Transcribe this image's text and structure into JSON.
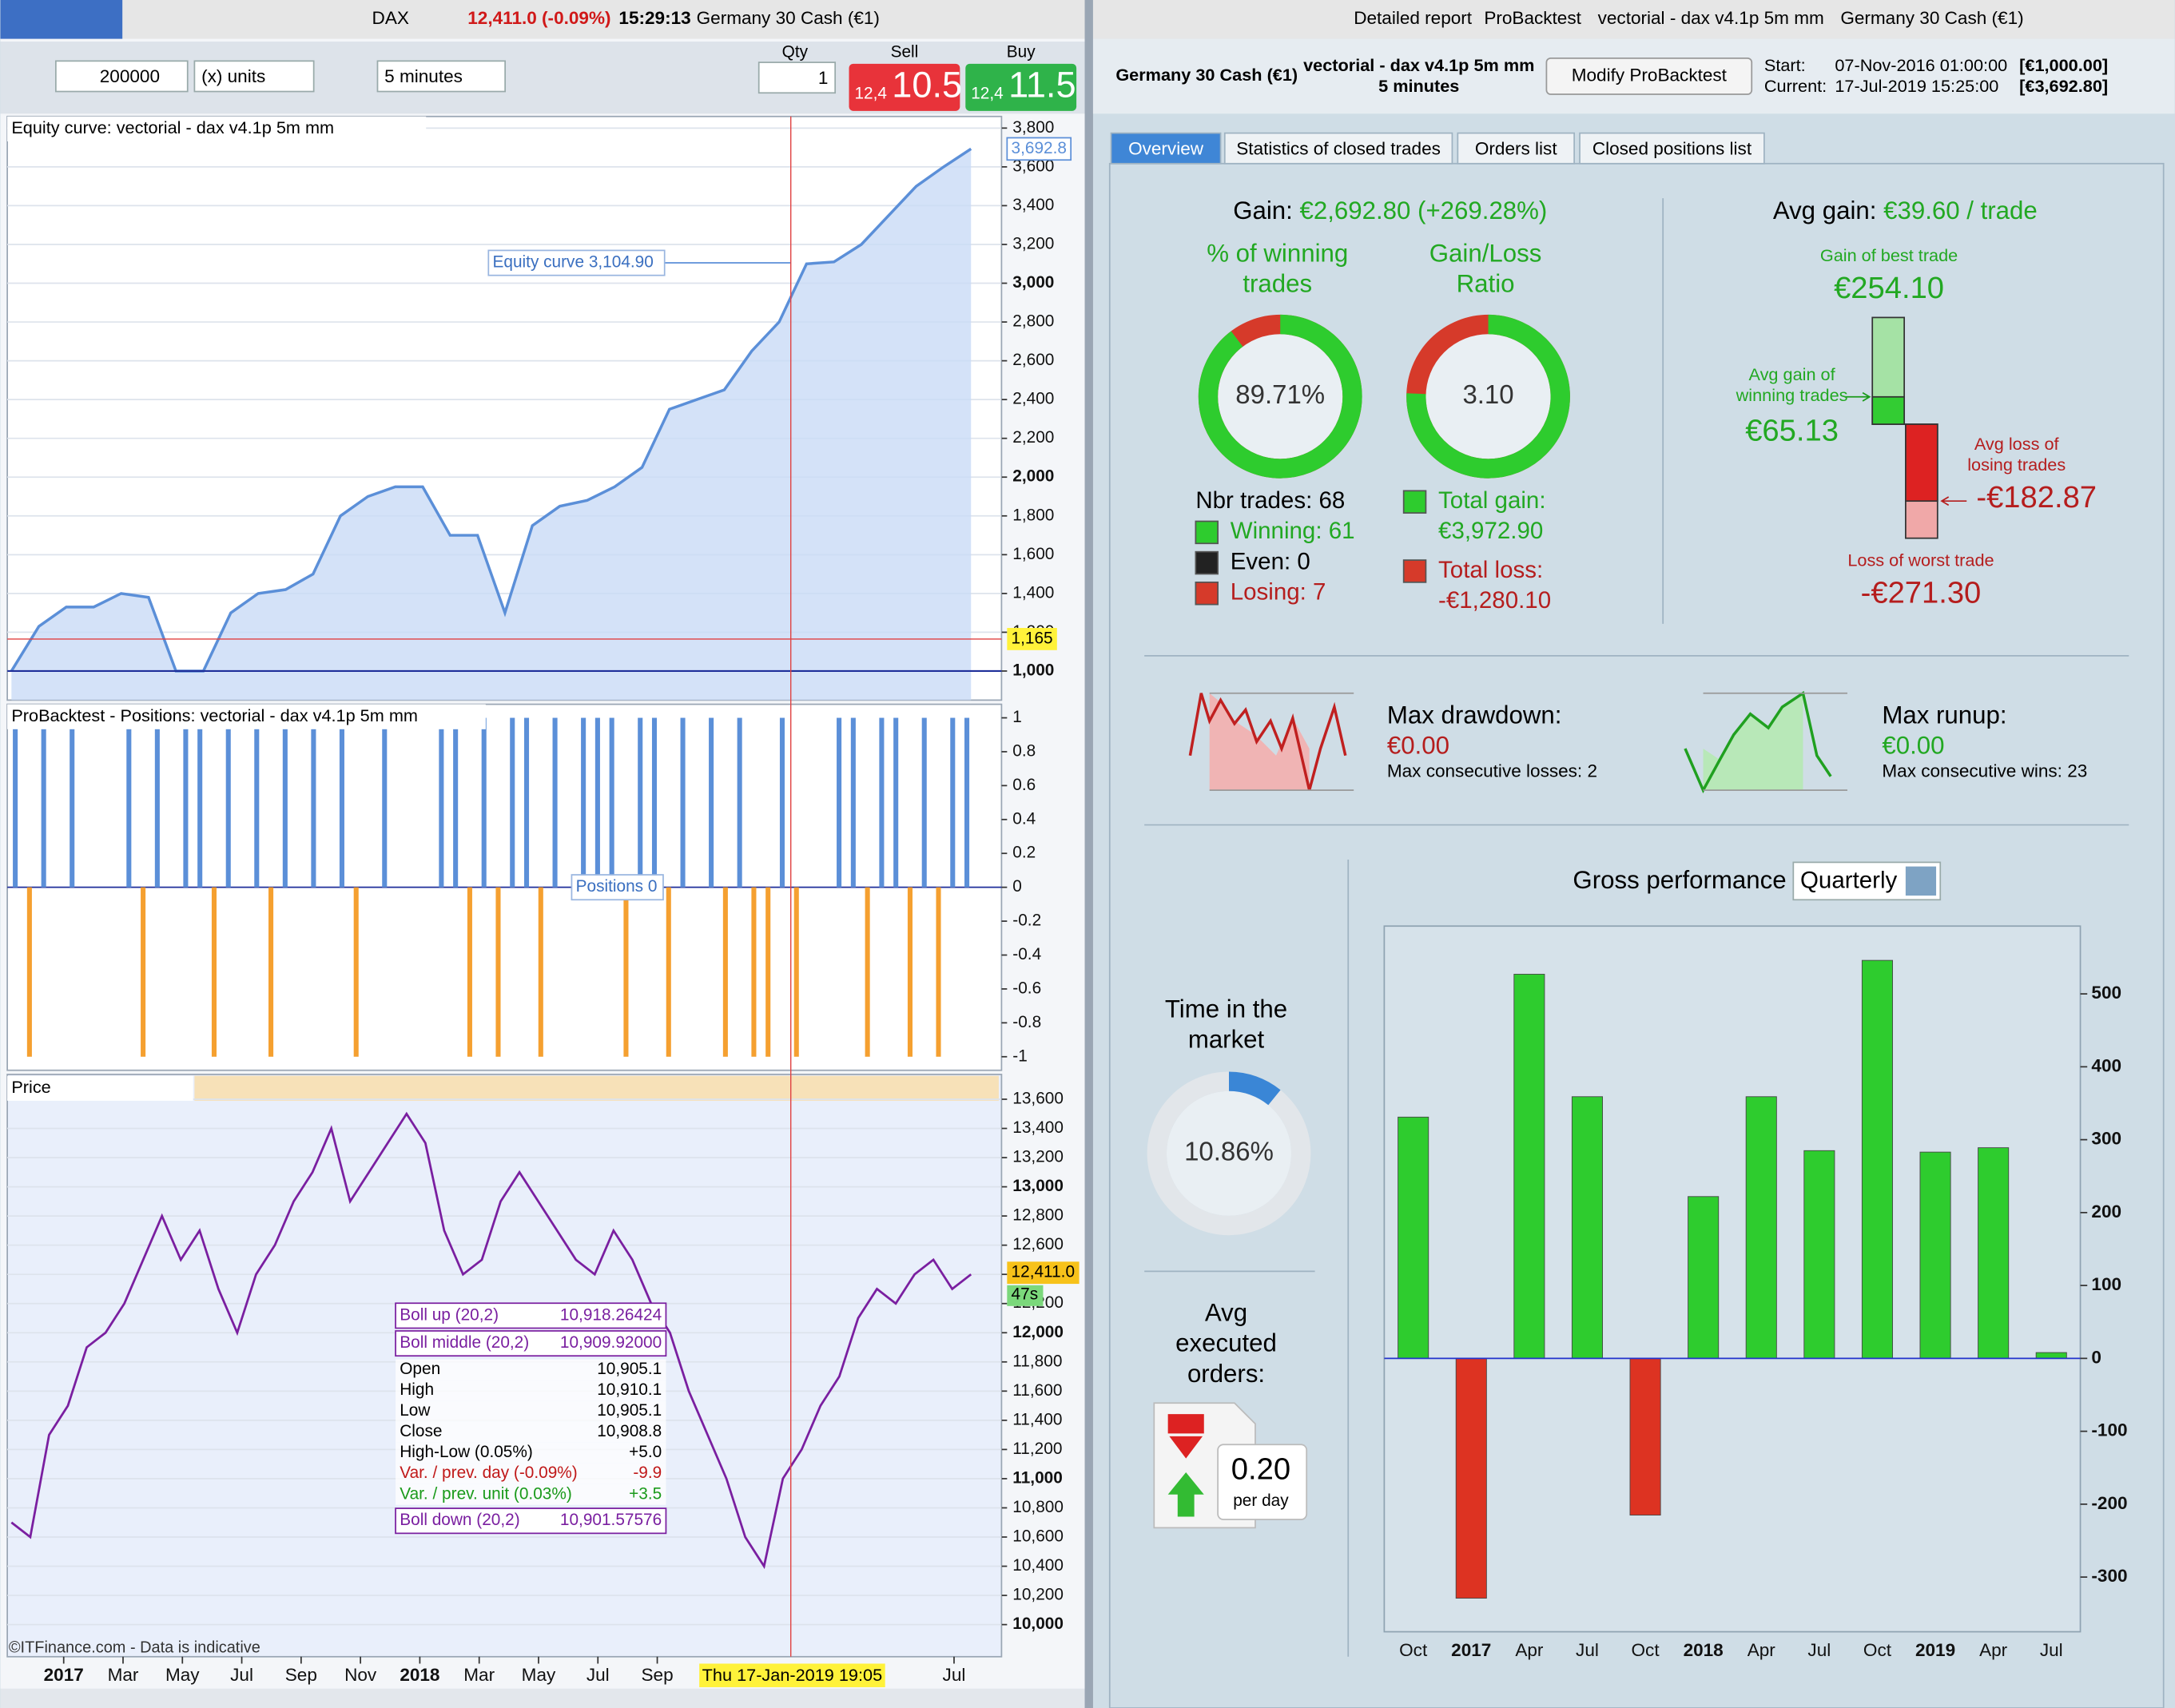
{
  "left_window": {
    "symbol": "DAX",
    "quote": "12,411.0 (-0.09%)",
    "time": "15:29:13",
    "instrument": "Germany 30 Cash (€1)"
  },
  "toolbar": {
    "amount": "200000",
    "units": "(x) units",
    "timeframe": "5 minutes",
    "qty_label": "Qty",
    "qty": "1",
    "sell_label": "Sell",
    "buy_label": "Buy",
    "sell_prefix": "12,4",
    "sell_price": "10.5",
    "buy_prefix": "12,4",
    "buy_price": "11.5"
  },
  "chart_data": [
    {
      "type": "area",
      "title": "Equity curve: vectorial - dax v4.1p 5m mm",
      "values": [
        1000,
        1230,
        1330,
        1330,
        1400,
        1380,
        1000,
        1000,
        1300,
        1400,
        1420,
        1500,
        1800,
        1900,
        1950,
        1950,
        1700,
        1700,
        1300,
        1750,
        1850,
        1880,
        1950,
        2050,
        2350,
        2400,
        2450,
        2650,
        2800,
        3100,
        3110,
        3200,
        3350,
        3500,
        3600,
        3692.8
      ],
      "color": "#5b8fd8",
      "fill": "#c9dbf6",
      "annotation": {
        "value": 3104.9,
        "label": "Equity curve  3,104.90"
      },
      "last_value": {
        "value": 3692.8,
        "label": "3,692.8"
      },
      "marker": {
        "value": 1165,
        "label": "1,165"
      },
      "ylim": [
        850,
        3860
      ],
      "yticks": [
        {
          "value": 1000,
          "label": "1,000"
        },
        {
          "value": 1200,
          "label": "1,200"
        },
        {
          "value": 1400,
          "label": "1,400"
        },
        {
          "value": 1600,
          "label": "1,600"
        },
        {
          "value": 1800,
          "label": "1,800"
        },
        {
          "value": 2000,
          "label": "2,000"
        },
        {
          "value": 2200,
          "label": "2,200"
        },
        {
          "value": 2400,
          "label": "2,400"
        },
        {
          "value": 2600,
          "label": "2,600"
        },
        {
          "value": 2800,
          "label": "2,800"
        },
        {
          "value": 3000,
          "label": "3,000"
        },
        {
          "value": 3200,
          "label": "3,200"
        },
        {
          "value": 3400,
          "label": "3,400"
        },
        {
          "value": 3600,
          "label": "3,600"
        },
        {
          "value": 3800,
          "label": "3,800"
        }
      ],
      "grid": true
    },
    {
      "type": "bar",
      "title": "ProBacktest - Positions: vectorial - dax v4.1p 5m mm",
      "annotation": "Positions  0",
      "values": [
        1,
        -1,
        1,
        0,
        1,
        0,
        0,
        0,
        1,
        -1,
        1,
        0,
        1,
        1,
        -1,
        1,
        0,
        1,
        -1,
        1,
        0,
        1,
        0,
        1,
        -1,
        0,
        1,
        0,
        0,
        0,
        1,
        1,
        -1,
        1,
        -1,
        1,
        1,
        -1,
        1,
        0,
        1,
        1,
        1,
        -1,
        1,
        1,
        -1,
        1,
        0,
        1,
        -1,
        1,
        -1,
        -1,
        1,
        -1,
        0,
        0,
        1,
        1,
        -1,
        1,
        1,
        -1,
        1,
        -1,
        1,
        1,
        0,
        0
      ],
      "positive_color": "#5b8fd8",
      "negative_color": "#f5a030",
      "ylim": [
        -1.08,
        1.08
      ],
      "yticks": [
        1,
        0.8,
        0.6,
        0.4,
        0.2,
        0,
        -0.2,
        -0.4,
        -0.6,
        -0.8,
        -1
      ]
    },
    {
      "type": "line",
      "title": "Price",
      "values": [
        10700,
        10600,
        11300,
        11500,
        11900,
        12000,
        12200,
        12500,
        12800,
        12500,
        12700,
        12300,
        12000,
        12400,
        12600,
        12900,
        13100,
        13400,
        12900,
        13100,
        13300,
        13500,
        13300,
        12700,
        12400,
        12500,
        12900,
        13100,
        12900,
        12700,
        12500,
        12400,
        12700,
        12500,
        12200,
        12000,
        11600,
        11300,
        11000,
        10600,
        10400,
        11000,
        11200,
        11500,
        11700,
        12100,
        12300,
        12200,
        12400,
        12500,
        12300,
        12400
      ],
      "color": "#7a1fa0",
      "last_value": {
        "value": 12411,
        "label": "12,411.0"
      },
      "countdown": "47s",
      "cursor": {
        "value": 24.5,
        "label": "Thu 17-Jan-2019 19:05"
      },
      "xlim": [
        -1.9,
        31.6
      ],
      "xticks": [
        {
          "value": 0,
          "label": "2017"
        },
        {
          "value": 2,
          "label": "Mar"
        },
        {
          "value": 4,
          "label": "May"
        },
        {
          "value": 6,
          "label": "Jul"
        },
        {
          "value": 8,
          "label": "Sep"
        },
        {
          "value": 10,
          "label": "Nov"
        },
        {
          "value": 12,
          "label": "2018"
        },
        {
          "value": 14,
          "label": "Mar"
        },
        {
          "value": 16,
          "label": "May"
        },
        {
          "value": 18,
          "label": "Jul"
        },
        {
          "value": 20,
          "label": "Sep"
        },
        {
          "value": 30,
          "label": "Jul"
        }
      ],
      "ylim": [
        9780,
        13770
      ],
      "yticks": [
        {
          "value": 10000,
          "label": "10,000"
        },
        {
          "value": 10200,
          "label": "10,200"
        },
        {
          "value": 10400,
          "label": "10,400"
        },
        {
          "value": 10600,
          "label": "10,600"
        },
        {
          "value": 10800,
          "label": "10,800"
        },
        {
          "value": 11000,
          "label": "11,000"
        },
        {
          "value": 11200,
          "label": "11,200"
        },
        {
          "value": 11400,
          "label": "11,400"
        },
        {
          "value": 11600,
          "label": "11,600"
        },
        {
          "value": 11800,
          "label": "11,800"
        },
        {
          "value": 12000,
          "label": "12,000"
        },
        {
          "value": 12200,
          "label": "12,200"
        },
        {
          "value": 12400,
          "label": "12,400"
        },
        {
          "value": 12600,
          "label": "12,600"
        },
        {
          "value": 12800,
          "label": "12,800"
        },
        {
          "value": 13000,
          "label": "13,000"
        },
        {
          "value": 13200,
          "label": "13,200"
        },
        {
          "value": 13400,
          "label": "13,400"
        },
        {
          "value": 13600,
          "label": "13,600"
        }
      ],
      "grid": true
    },
    {
      "type": "bar",
      "title": "Gross performance",
      "period": "Quarterly",
      "categories": [
        "Oct",
        "2017",
        "Apr",
        "Jul",
        "Oct",
        "2018",
        "Apr",
        "Jul",
        "Oct",
        "2019",
        "Apr",
        "Jul"
      ],
      "values": [
        331,
        -329,
        527,
        359,
        -215,
        222,
        359,
        285,
        546,
        283,
        289,
        8
      ],
      "positive_color": "#2ecc2e",
      "negative_color": "#dd3322",
      "ylim": [
        -375,
        593
      ],
      "yticks": [
        -300,
        -200,
        -100,
        0,
        100,
        200,
        300,
        400,
        500
      ]
    }
  ],
  "price_info": {
    "rows": [
      {
        "label": "Boll up (20,2)",
        "value": "10,918.26424",
        "color": "#7a1fa0"
      },
      {
        "label": "Boll middle (20,2)",
        "value": "10,909.92000",
        "color": "#7a1fa0"
      },
      {
        "label": "Open",
        "value": "10,905.1",
        "color": "#000000"
      },
      {
        "label": "High",
        "value": "10,910.1",
        "color": "#000000"
      },
      {
        "label": "Low",
        "value": "10,905.1",
        "color": "#000000"
      },
      {
        "label": "Close",
        "value": "10,908.8",
        "color": "#000000"
      },
      {
        "label": "High-Low (0.05%)",
        "value": "+5.0",
        "color": "#000000"
      },
      {
        "label": "Var. / prev. day (-0.09%)",
        "value": "-9.9",
        "color": "#c01818"
      },
      {
        "label": "Var. / prev. unit (0.03%)",
        "value": "+3.5",
        "color": "#1a9a1a"
      },
      {
        "label": "Boll down (20,2)",
        "value": "10,901.57576",
        "color": "#7a1fa0"
      }
    ],
    "copyright": "©ITFinance.com - Data is indicative"
  },
  "right_window": {
    "title_bar": [
      "Detailed report",
      "ProBacktest",
      "vectorial - dax v4.1p 5m mm",
      "Germany 30 Cash (€1)"
    ],
    "instrument": "Germany 30 Cash (€1)",
    "system": "vectorial - dax v4.1p 5m mm",
    "timeframe": "5 minutes",
    "button": "Modify ProBacktest",
    "start_label": "Start:",
    "start_date": "07-Nov-2016 01:00:00",
    "start_capital": "[€1,000.00]",
    "current_label": "Current:",
    "current_date": "17-Jul-2019 15:25:00",
    "current_capital": "[€3,692.80]",
    "tabs": [
      "Overview",
      "Statistics of closed trades",
      "Orders list",
      "Closed positions list"
    ]
  },
  "overview": {
    "gain_label": "Gain:",
    "gain": "€2,692.80 (+269.28%)",
    "winning_title": [
      "% of winning",
      "trades"
    ],
    "winning_pct": {
      "value": 89.71,
      "label": "89.71%"
    },
    "ratio_title": [
      "Gain/Loss",
      "Ratio"
    ],
    "ratio": {
      "value": 3.1,
      "label": "3.10"
    },
    "nbr_trades": "Nbr trades: 68",
    "winning": "Winning: 61",
    "even": "Even: 0",
    "losing": "Losing: 7",
    "total_gain_label": "Total gain:",
    "total_gain": "€3,972.90",
    "total_loss_label": "Total loss:",
    "total_loss": "-€1,280.10",
    "avg_gain_label": "Avg gain:",
    "avg_gain": "€39.60 / trade",
    "best_trade": {
      "title": [
        "Gain of best trade"
      ],
      "value": 254.1,
      "label": "€254.10"
    },
    "avg_win": {
      "title": [
        "Avg gain of",
        "winning trades"
      ],
      "value": 65.13,
      "label": "€65.13"
    },
    "avg_loss": {
      "title": [
        "Avg loss of",
        "losing trades"
      ],
      "value": -182.87,
      "label": "-€182.87"
    },
    "worst_trade": {
      "title": [
        "Loss of worst trade"
      ],
      "value": -271.3,
      "label": "-€271.30"
    },
    "drawdown_label": "Max drawdown:",
    "drawdown": "€0.00",
    "consecutive_losses": "Max consecutive losses: 2",
    "runup_label": "Max runup:",
    "runup": "€0.00",
    "consecutive_wins": "Max consecutive wins: 23",
    "market_title": [
      "Time in the",
      "market"
    ],
    "market_pct": {
      "value": 10.86,
      "label": "10.86%"
    },
    "orders_title": [
      "Avg",
      "executed",
      "orders:"
    ],
    "orders": "0.20",
    "orders_unit": "per day"
  }
}
